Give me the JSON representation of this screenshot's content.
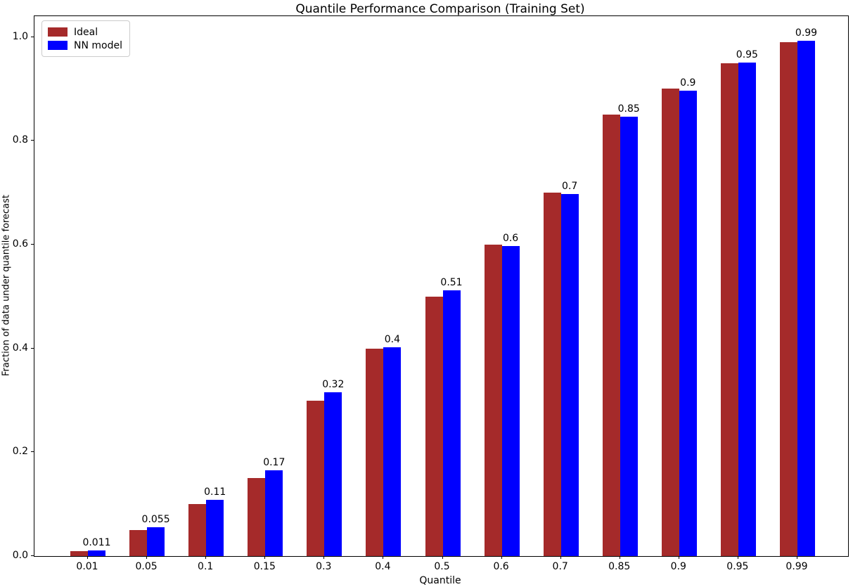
{
  "chart_data": {
    "type": "bar",
    "title": "Quantile Performance Comparison (Training Set)",
    "xlabel": "Quantile",
    "ylabel": "Fraction of data under quantile forecast",
    "categories": [
      "0.01",
      "0.05",
      "0.1",
      "0.15",
      "0.3",
      "0.4",
      "0.5",
      "0.6",
      "0.7",
      "0.85",
      "0.9",
      "0.95",
      "0.99"
    ],
    "series": [
      {
        "name": "Ideal",
        "color": "#A52A2A",
        "values": [
          0.01,
          0.05,
          0.1,
          0.15,
          0.3,
          0.4,
          0.5,
          0.6,
          0.7,
          0.85,
          0.9,
          0.95,
          0.99
        ]
      },
      {
        "name": "NN model",
        "color": "#0000FF",
        "values": [
          0.011,
          0.055,
          0.108,
          0.165,
          0.315,
          0.402,
          0.512,
          0.597,
          0.698,
          0.847,
          0.896,
          0.951,
          0.992
        ],
        "bar_labels": [
          "0.011",
          "0.055",
          "0.11",
          "0.17",
          "0.32",
          "0.4",
          "0.51",
          "0.6",
          "0.7",
          "0.85",
          "0.9",
          "0.95",
          "0.99"
        ]
      }
    ],
    "yticks": [
      "0.0",
      "0.2",
      "0.4",
      "0.6",
      "0.8",
      "1.0"
    ],
    "ylim": [
      0,
      1.04
    ],
    "legend_position": "upper left",
    "grid": false
  }
}
